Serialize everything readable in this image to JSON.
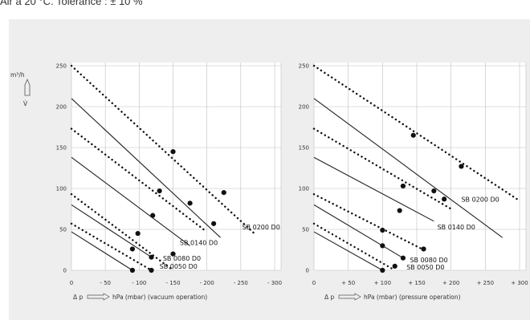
{
  "caption": "Air à 20 °C. Tolérance : ± 10 %",
  "y_unit_label": "m³/h",
  "y_symbol": "V̇",
  "chart_data": [
    {
      "type": "line",
      "title": "",
      "xlabel_prefix": "Δ p",
      "xlabel": "hPa (mbar) (vacuum operation)",
      "ylabel": "m³/h",
      "xlim": [
        0,
        300
      ],
      "ylim": [
        0,
        250
      ],
      "grid": true,
      "x_ticks": [
        "0",
        "- 50",
        "- 100",
        "- 150",
        "- 200",
        "- 250",
        "- 300"
      ],
      "y_ticks": [
        "0",
        "50",
        "100",
        "150",
        "200",
        "250"
      ],
      "series": [
        {
          "name": "SB 0050 D0",
          "solid": [
            [
              0,
              47
            ],
            [
              90,
              0
            ]
          ],
          "dotted": [
            [
              0,
              57
            ],
            [
              118,
              0
            ]
          ],
          "marker_solid": [
            90,
            0
          ],
          "marker_dotted": [
            118,
            0
          ]
        },
        {
          "name": "SB 0080 D0",
          "solid": [
            [
              0,
              80
            ],
            [
              120,
              15
            ]
          ],
          "dotted": [
            [
              0,
              93
            ],
            [
              150,
              0
            ]
          ],
          "marker_solid": [
            98,
            45
          ],
          "marker_dotted": [
            150,
            20
          ]
        },
        {
          "name": "SB 0140 D0",
          "solid": [
            [
              0,
              138
            ],
            [
              175,
              30
            ]
          ],
          "dotted": [
            [
              0,
              173
            ],
            [
              195,
              50
            ]
          ],
          "marker_solid": [
            120,
            67
          ],
          "marker_dotted": [
            130,
            97
          ]
        },
        {
          "name": "SB 0200 D0",
          "solid": [
            [
              0,
              210
            ],
            [
              220,
              40
            ]
          ],
          "dotted": [
            [
              0,
              250
            ],
            [
              270,
              45
            ]
          ],
          "marker_solid": [
            210,
            57
          ],
          "marker_dotted": [
            150,
            145
          ]
        }
      ],
      "extra_markers": [
        [
          90,
          26
        ],
        [
          118,
          16
        ],
        [
          175,
          82
        ],
        [
          225,
          95
        ]
      ],
      "series_labels": [
        {
          "text": "SB 0200 D0",
          "x": 252,
          "y": 50
        },
        {
          "text": "SB 0140 D0",
          "x": 160,
          "y": 31
        },
        {
          "text": "SB 0080 D0",
          "x": 135,
          "y": 12
        },
        {
          "text": "SB 0050 D0",
          "x": 130,
          "y": 2
        }
      ]
    },
    {
      "type": "line",
      "title": "",
      "xlabel_prefix": "Δ p",
      "xlabel": "hPa (mbar) (pressure operation)",
      "ylabel": "m³/h",
      "xlim": [
        0,
        300
      ],
      "ylim": [
        0,
        250
      ],
      "grid": true,
      "x_ticks": [
        "0",
        "+ 50",
        "+ 100",
        "+ 150",
        "+ 200",
        "+ 250",
        "+ 300"
      ],
      "y_ticks": [
        "0",
        "50",
        "100",
        "150",
        "200",
        "250"
      ],
      "series": [
        {
          "name": "SB 0050 D0",
          "solid": [
            [
              0,
              47
            ],
            [
              100,
              0
            ]
          ],
          "dotted": [
            [
              0,
              57
            ],
            [
              118,
              0
            ]
          ],
          "marker_solid": [
            100,
            0
          ],
          "marker_dotted": [
            118,
            5
          ]
        },
        {
          "name": "SB 0080 D0",
          "solid": [
            [
              0,
              80
            ],
            [
              130,
              15
            ]
          ],
          "dotted": [
            [
              0,
              93
            ],
            [
              160,
              25
            ]
          ],
          "marker_solid": [
            100,
            30
          ],
          "marker_dotted": [
            160,
            26
          ]
        },
        {
          "name": "SB 0140 D0",
          "solid": [
            [
              0,
              138
            ],
            [
              175,
              60
            ]
          ],
          "dotted": [
            [
              0,
              173
            ],
            [
              200,
              75
            ]
          ],
          "marker_solid": [
            125,
            73
          ],
          "marker_dotted": [
            130,
            103
          ]
        },
        {
          "name": "SB 0200 D0",
          "solid": [
            [
              0,
              210
            ],
            [
              275,
              40
            ]
          ],
          "dotted": [
            [
              0,
              250
            ],
            [
              300,
              85
            ]
          ],
          "marker_solid": [
            175,
            97
          ],
          "marker_dotted": [
            145,
            165
          ]
        }
      ],
      "extra_markers": [
        [
          100,
          49
        ],
        [
          130,
          15
        ],
        [
          190,
          87
        ],
        [
          215,
          127
        ]
      ],
      "series_labels": [
        {
          "text": "SB 0200 D0",
          "x": 215,
          "y": 84
        },
        {
          "text": "SB 0140 D0",
          "x": 180,
          "y": 50
        },
        {
          "text": "SB 0080 D0",
          "x": 140,
          "y": 10
        },
        {
          "text": "SB 0050 D0",
          "x": 135,
          "y": 1
        }
      ]
    }
  ]
}
